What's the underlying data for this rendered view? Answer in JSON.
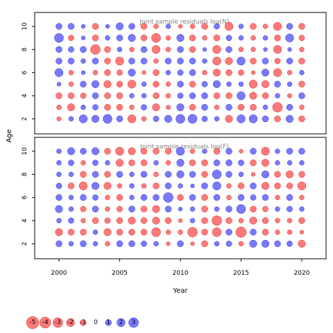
{
  "chart_data": {
    "type": "scatter",
    "subtype": "bubble",
    "x_axis": {
      "label": "Year",
      "ticks": [
        2000,
        2005,
        2010,
        2015,
        2020
      ],
      "range": [
        1998,
        2022
      ]
    },
    "y_axis": {
      "label": "Age",
      "ticks": [
        2,
        4,
        6,
        8,
        10
      ],
      "range": [
        0.7,
        11.2
      ]
    },
    "colors": {
      "negative": "#ff4c4c",
      "positive": "#4c4cff",
      "edge_negative": "#cc3333",
      "edge_positive": "#3333cc",
      "title": "#808080"
    },
    "years": [
      2000,
      2001,
      2002,
      2003,
      2004,
      2005,
      2006,
      2007,
      2008,
      2009,
      2010,
      2011,
      2012,
      2013,
      2014,
      2015,
      2016,
      2017,
      2018,
      2019,
      2020
    ],
    "ages": [
      2,
      3,
      4,
      5,
      6,
      7,
      8,
      9,
      10
    ],
    "panels": [
      {
        "title": "Joint sample residuals log(N)",
        "residuals": [
          [
            -0.4,
            0.5,
            2.0,
            1.5,
            2.5,
            1.0,
            -2.0,
            -0.5,
            0.8,
            1.5,
            2.5,
            2.5,
            0.8,
            0.5,
            -1.5,
            2.0,
            2.0,
            1.0,
            -1.0,
            1.5,
            -1.0
          ],
          [
            -0.5,
            -1.5,
            0.5,
            0.8,
            -1.0,
            -1.0,
            -0.5,
            0.8,
            -1.5,
            -0.4,
            1.5,
            -1.0,
            1.0,
            -0.5,
            1.0,
            -1.0,
            -1.0,
            0.5,
            -3.0,
            1.0,
            -0.5
          ],
          [
            -1.0,
            -1.0,
            -0.8,
            1.0,
            -1.0,
            -1.0,
            0.5,
            0.5,
            -1.0,
            -0.5,
            0.8,
            1.0,
            1.0,
            -1.0,
            -1.0,
            2.0,
            -1.5,
            -1.0,
            0.5,
            -0.4,
            1.0
          ],
          [
            0.3,
            -0.5,
            1.0,
            1.5,
            -1.5,
            -1.0,
            -2.0,
            0.5,
            -1.0,
            -0.5,
            1.0,
            -1.0,
            0.8,
            1.5,
            0.5,
            0.5,
            -2.0,
            -1.5,
            1.0,
            0.5,
            -1.0
          ],
          [
            2.0,
            -0.5,
            0.3,
            -0.5,
            -1.0,
            -0.8,
            1.5,
            -0.3,
            -1.0,
            0.5,
            0.8,
            1.0,
            -0.5,
            -1.5,
            -1.0,
            -0.8,
            -0.3,
            1.5,
            -2.0,
            -0.5,
            0.5
          ],
          [
            1.0,
            1.0,
            0.5,
            1.0,
            -1.0,
            -2.0,
            1.0,
            1.0,
            -0.5,
            1.0,
            1.0,
            1.0,
            0.5,
            -2.0,
            -1.5,
            2.0,
            -1.0,
            1.0,
            -0.8,
            1.0,
            -1.0
          ],
          [
            1.0,
            0.8,
            1.0,
            -3.0,
            -1.0,
            0.5,
            -0.5,
            1.0,
            -2.0,
            -0.5,
            1.0,
            -1.0,
            0.3,
            -2.0,
            1.0,
            -0.5,
            -0.5,
            0.3,
            -2.0,
            0.3,
            -0.5
          ],
          [
            2.5,
            -0.8,
            0.3,
            -1.0,
            0.5,
            1.0,
            1.5,
            -1.0,
            -2.5,
            -0.5,
            1.5,
            -1.0,
            -0.5,
            -1.0,
            0.8,
            0.5,
            -0.5,
            0.5,
            -1.0,
            2.0,
            -0.8
          ],
          [
            1.0,
            1.0,
            0.3,
            -1.0,
            0.3,
            1.5,
            1.0,
            -1.0,
            -0.5,
            0.5,
            -0.3,
            -0.5,
            -1.0,
            0.8,
            -2.0,
            0.5,
            -1.0,
            -0.5,
            -2.0,
            1.0,
            -1.0
          ]
        ]
      },
      {
        "title": "Joint sample residuals log(F)",
        "residuals": [
          [
            1.0,
            0.5,
            1.0,
            0.5,
            -0.5,
            1.0,
            1.0,
            0.8,
            0.5,
            -0.3,
            1.0,
            -0.3,
            -1.0,
            0.5,
            0.8,
            -0.5,
            1.5,
            1.5,
            1.0,
            0.8,
            -1.5
          ],
          [
            -1.5,
            -1.0,
            -1.0,
            0.5,
            -1.5,
            -1.0,
            -1.0,
            -1.0,
            -2.5,
            -0.5,
            -0.5,
            -3.0,
            -1.0,
            -2.5,
            1.0,
            -3.5,
            1.0,
            -1.0,
            -0.5,
            -0.5,
            -0.3
          ],
          [
            0.5,
            0.8,
            -0.5,
            -1.0,
            -0.8,
            -1.0,
            -1.5,
            -1.0,
            -1.5,
            -1.0,
            -0.3,
            0.5,
            -1.0,
            -3.0,
            -1.0,
            -0.5,
            -1.5,
            -1.0,
            -0.5,
            -0.5,
            -1.0
          ],
          [
            1.5,
            0.5,
            -0.8,
            1.0,
            -0.5,
            -0.8,
            1.0,
            -1.0,
            -1.5,
            1.0,
            0.3,
            0.5,
            -1.0,
            0.5,
            1.0,
            2.5,
            -1.0,
            -0.8,
            0.5,
            0.8,
            0.5
          ],
          [
            1.0,
            0.5,
            1.0,
            0.8,
            -0.5,
            -1.0,
            0.5,
            1.0,
            1.0,
            3.0,
            -1.0,
            1.0,
            -1.0,
            1.0,
            -0.5,
            1.0,
            0.8,
            1.0,
            -0.5,
            1.0,
            -0.5
          ],
          [
            0.8,
            -1.0,
            -2.0,
            1.5,
            -1.5,
            -0.5,
            0.5,
            -0.5,
            -1.0,
            1.0,
            0.5,
            0.3,
            1.0,
            2.0,
            -0.5,
            -1.0,
            1.0,
            -1.5,
            -1.0,
            -1.0,
            -2.0
          ],
          [
            0.5,
            0.5,
            -1.0,
            1.0,
            -1.0,
            1.0,
            0.5,
            1.0,
            -0.5,
            1.0,
            1.5,
            1.0,
            -1.0,
            2.5,
            1.0,
            0.5,
            -0.3,
            1.5,
            -1.0,
            -1.5,
            -1.0
          ],
          [
            0.5,
            0.8,
            -0.5,
            0.8,
            0.5,
            -1.5,
            -1.0,
            -1.0,
            0.5,
            -0.5,
            1.5,
            -1.0,
            -1.0,
            1.0,
            1.0,
            0.8,
            -1.0,
            -1.5,
            0.5,
            0.5,
            0.5
          ],
          [
            0.5,
            1.5,
            1.0,
            1.5,
            -1.0,
            -2.0,
            -1.5,
            -1.0,
            -1.0,
            -1.0,
            2.0,
            -0.5,
            0.5,
            -1.0,
            1.0,
            -0.3,
            1.0,
            -2.0,
            0.5,
            1.0,
            1.0
          ]
        ]
      }
    ],
    "legend": {
      "values": [
        -5,
        -4,
        -3,
        -2,
        -1,
        0,
        1,
        2,
        3
      ],
      "labels": [
        "-5",
        "-4",
        "-3",
        "-2",
        "-1",
        "0",
        "1",
        "2",
        "3"
      ]
    }
  }
}
